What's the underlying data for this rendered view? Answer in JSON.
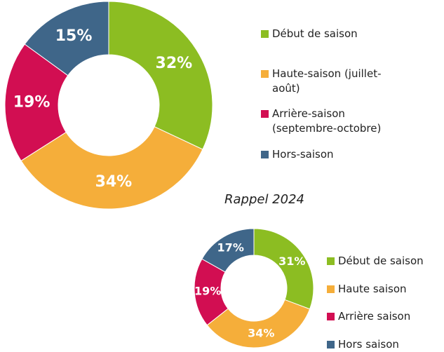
{
  "chart_data": [
    {
      "type": "donut",
      "series": [
        {
          "name": "Début de saison",
          "color": "#8cbd22",
          "values": [
            32
          ]
        },
        {
          "name": "Haute-saison (juillet-août)",
          "color": "#f5ae3a",
          "values": [
            34
          ]
        },
        {
          "name": "Arrière-saison (septembre-octobre)",
          "color": "#d20e52",
          "values": [
            19
          ]
        },
        {
          "name": "Hors-saison",
          "color": "#3f6689",
          "values": [
            15
          ]
        }
      ],
      "value_labels": [
        "32%",
        "34%",
        "19%",
        "15%"
      ]
    },
    {
      "type": "donut",
      "title": "Rappel 2024",
      "series": [
        {
          "name": "Début de saison",
          "color": "#8cbd22",
          "values": [
            31
          ]
        },
        {
          "name": "Haute saison",
          "color": "#f5ae3a",
          "values": [
            34
          ]
        },
        {
          "name": "Arrière saison",
          "color": "#d20e52",
          "values": [
            19
          ]
        },
        {
          "name": "Hors saison",
          "color": "#3f6689",
          "values": [
            17
          ]
        }
      ],
      "value_labels": [
        "31%",
        "34%",
        "19%",
        "17%"
      ]
    }
  ]
}
